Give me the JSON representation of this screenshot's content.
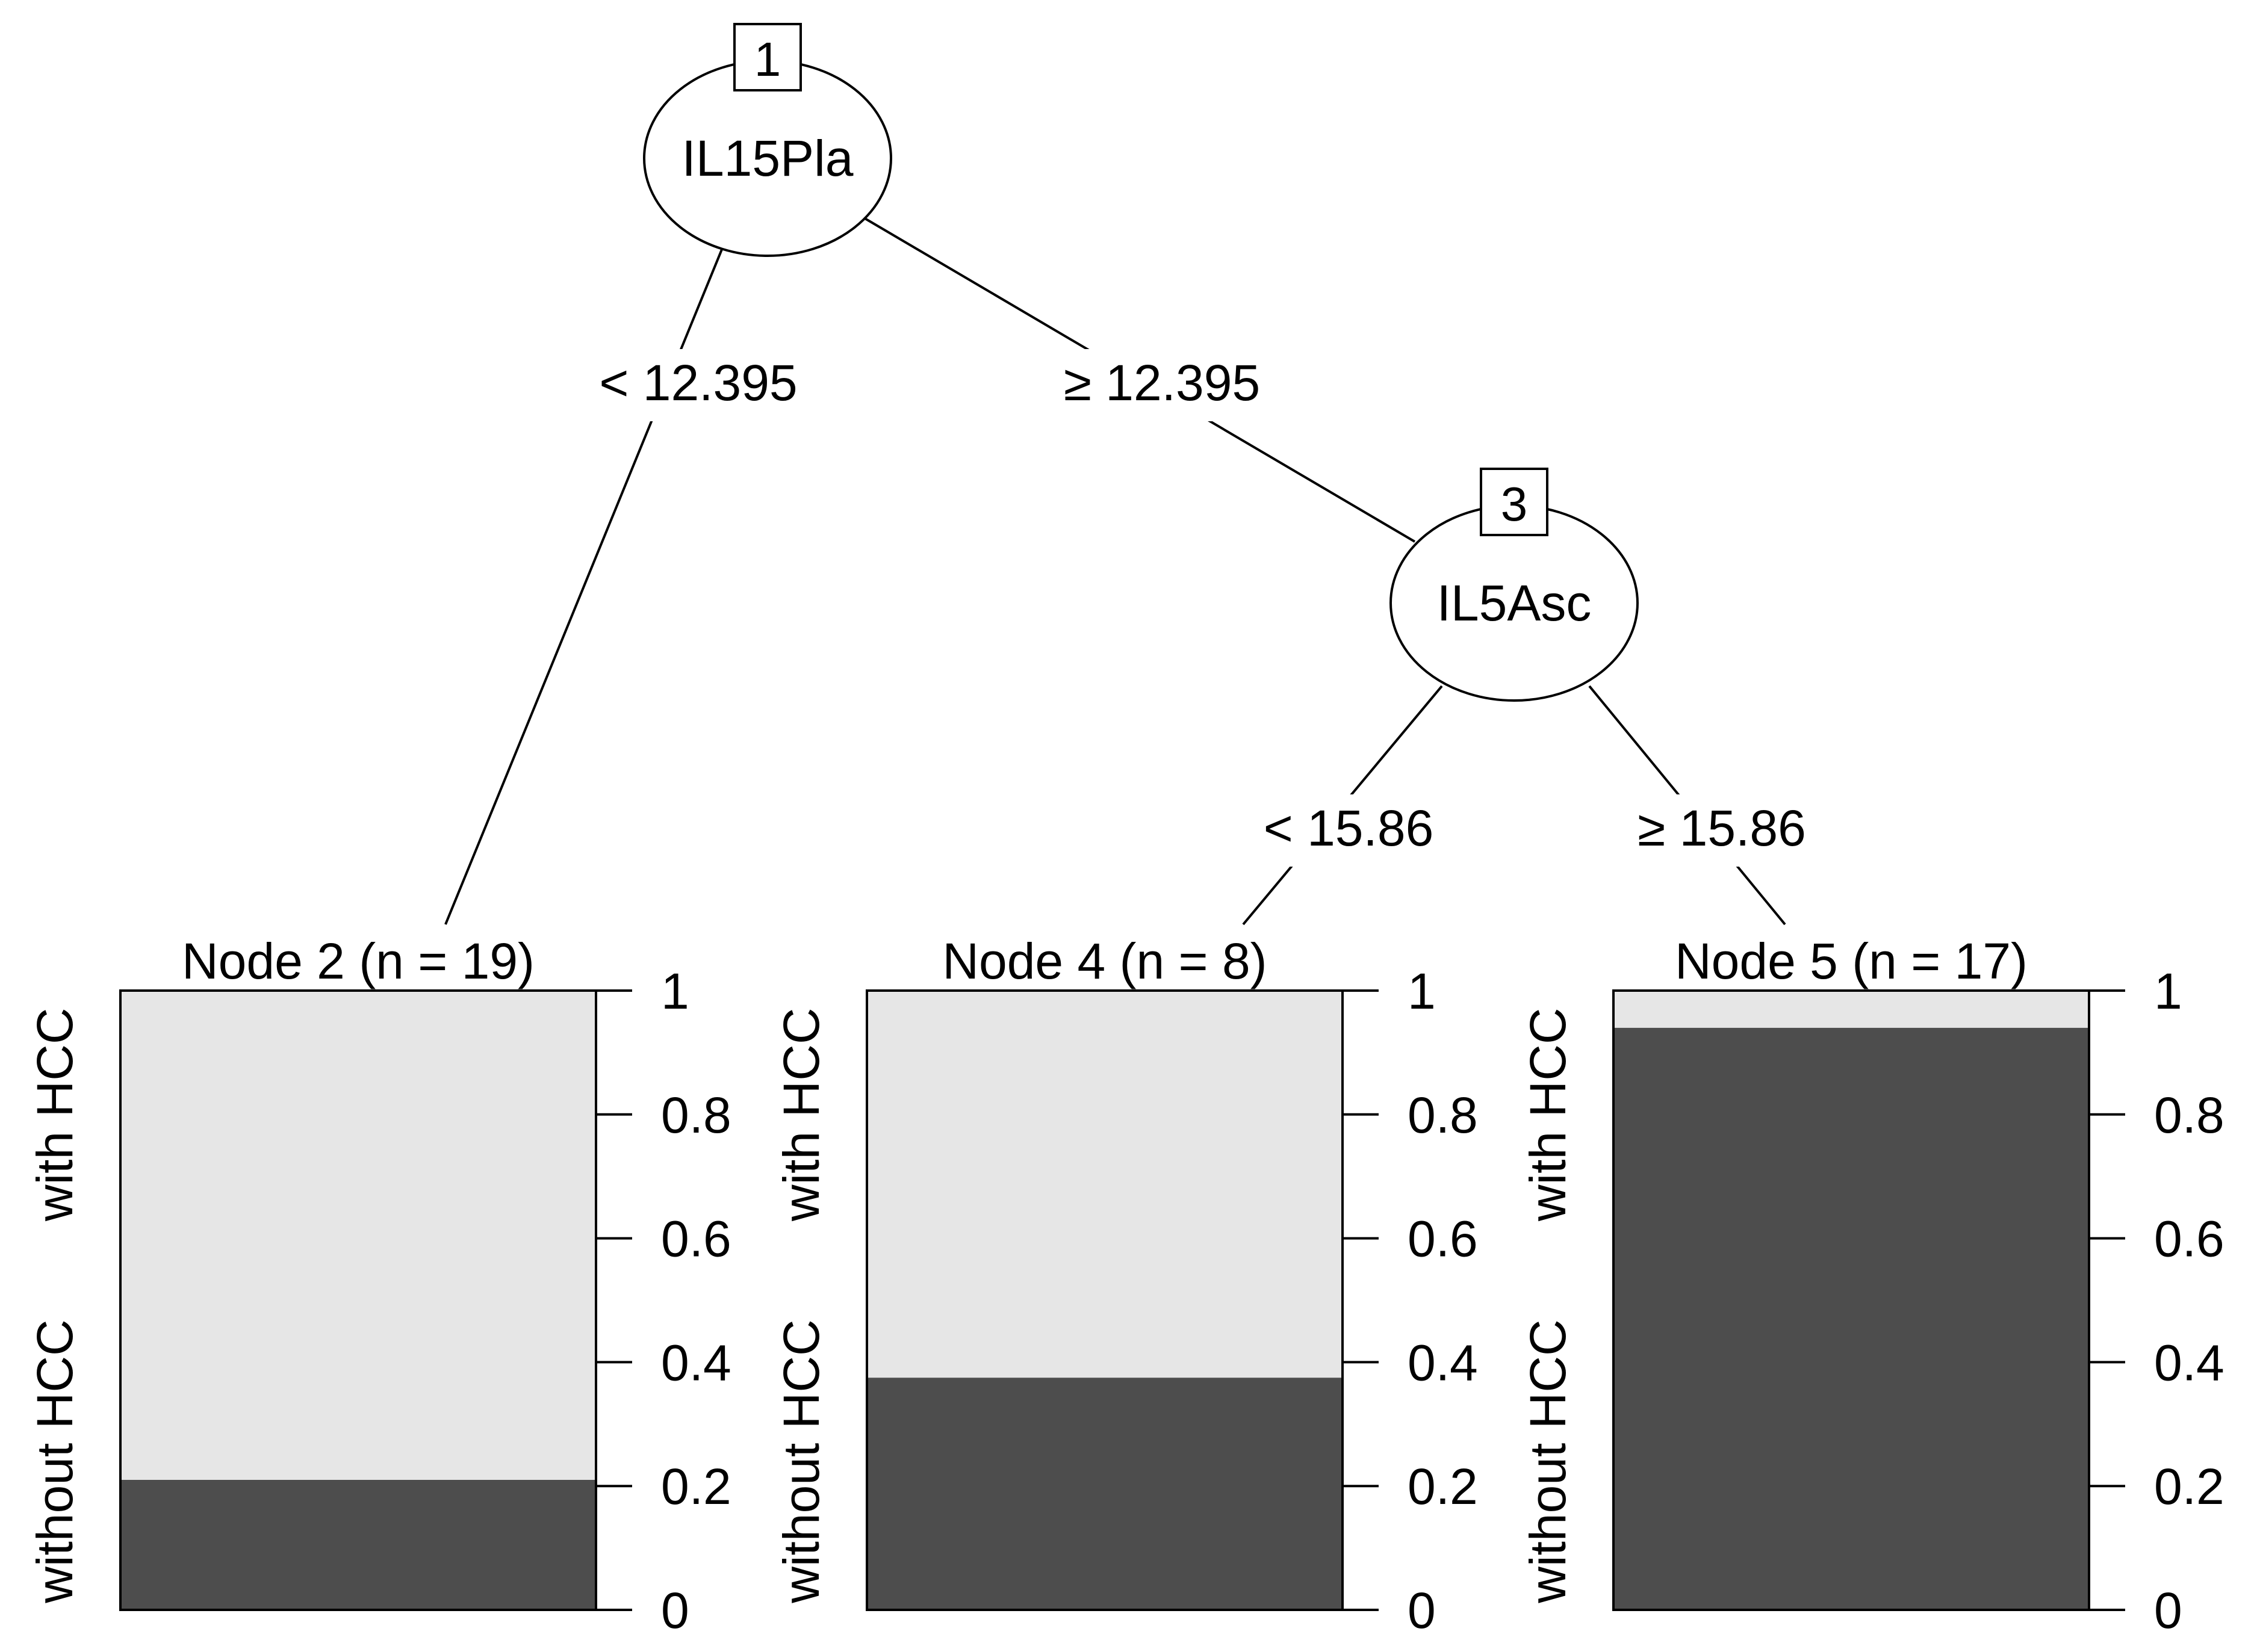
{
  "tree": {
    "inner_nodes": [
      {
        "id": "1",
        "variable": "IL15Pla"
      },
      {
        "id": "3",
        "variable": "IL5Asc"
      }
    ],
    "splits": [
      {
        "from": "1",
        "to": "2",
        "label": "< 12.395"
      },
      {
        "from": "1",
        "to": "3",
        "label": "≥ 12.395"
      },
      {
        "from": "3",
        "to": "4",
        "label": "< 15.86"
      },
      {
        "from": "3",
        "to": "5",
        "label": "≥ 15.86"
      }
    ]
  },
  "chart_data": {
    "type": "bar",
    "stacked": true,
    "categories": [
      "Node 2 (n = 19)",
      "Node 4 (n = 8)",
      "Node 5 (n = 17)"
    ],
    "series": [
      {
        "name": "without HCC",
        "values": [
          0.21,
          0.375,
          0.94
        ],
        "color": "#4d4d4d"
      },
      {
        "name": "with HCC",
        "values": [
          0.79,
          0.625,
          0.06
        ],
        "color": "#e6e6e6"
      }
    ],
    "ylim": [
      0,
      1
    ],
    "yticks": [
      "0",
      "0.2",
      "0.4",
      "0.6",
      "0.8",
      "1"
    ],
    "ytick_values": [
      0,
      0.2,
      0.4,
      0.6,
      0.8,
      1
    ]
  }
}
